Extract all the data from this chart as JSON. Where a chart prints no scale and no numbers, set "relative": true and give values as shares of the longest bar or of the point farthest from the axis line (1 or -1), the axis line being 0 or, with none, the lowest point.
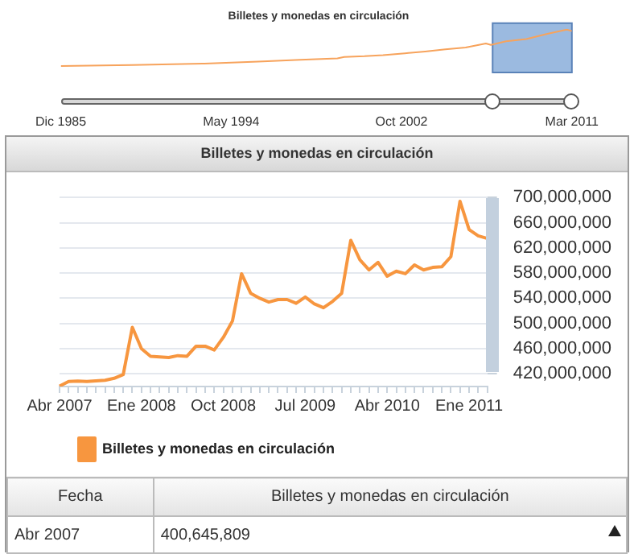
{
  "chart_data": [
    {
      "type": "line",
      "title": "Billetes y monedas en circulación",
      "relative": true,
      "legend": false,
      "grid": false,
      "xlim": [
        "1985-12",
        "2011-03"
      ],
      "xticks": [
        {
          "value": "1985-12",
          "label": "Dic 1985"
        },
        {
          "value": "1994-05",
          "label": "May 1994"
        },
        {
          "value": "2002-10",
          "label": "Oct 2002"
        },
        {
          "value": "2011-03",
          "label": "Mar 2011"
        }
      ],
      "bands": [
        {
          "axis": "x",
          "from": "2007-04",
          "to": "2011-03",
          "color": "#8aaedb"
        }
      ],
      "series": [
        {
          "color": "#f7a35c",
          "x": [
            "1985-12",
            "1989-06",
            "1992-12",
            "1995-09",
            "1997-10",
            "1999-08",
            "1999-12",
            "2000-12",
            "2001-11",
            "2002-12",
            "2003-12",
            "2004-12",
            "2005-12",
            "2006-12",
            "2007-03",
            "2007-12",
            "2008-12",
            "2009-12",
            "2010-12",
            "2011-03"
          ],
          "values": [
            0,
            0.03,
            0.065,
            0.12,
            0.17,
            0.21,
            0.25,
            0.27,
            0.3,
            0.35,
            0.4,
            0.46,
            0.51,
            0.62,
            0.58,
            0.68,
            0.74,
            0.88,
            1,
            0.96
          ]
        }
      ]
    },
    {
      "type": "line",
      "title": "Billetes y monedas en circulación",
      "legend": "bottom left",
      "grid": "y",
      "categories": [
        "Abr 2007",
        null,
        null,
        null,
        null,
        null,
        null,
        null,
        null,
        "Ene 2008",
        null,
        null,
        null,
        null,
        null,
        null,
        null,
        null,
        "Oct 2008",
        null,
        null,
        null,
        null,
        null,
        null,
        null,
        null,
        "Jul 2009",
        null,
        null,
        null,
        null,
        null,
        null,
        null,
        null,
        "Abr 2010",
        null,
        null,
        null,
        null,
        null,
        null,
        null,
        null,
        "Ene 2011",
        null,
        null
      ],
      "ylim": [
        400000000,
        700000000
      ],
      "yticks": [
        {
          "value": 420000000,
          "label": "420,000,000"
        },
        {
          "value": 460000000,
          "label": "460,000,000"
        },
        {
          "value": 500000000,
          "label": "500,000,000"
        },
        {
          "value": 540000000,
          "label": "540,000,000"
        },
        {
          "value": 580000000,
          "label": "580,000,000"
        },
        {
          "value": 620000000,
          "label": "620,000,000"
        },
        {
          "value": 660000000,
          "label": "660,000,000"
        },
        {
          "value": 700000000,
          "label": "700,000,000"
        }
      ],
      "series": [
        {
          "name": "Billetes y monedas en circulación",
          "color": "#f7963f",
          "values": [
            400645809,
            408000000,
            408500000,
            408000000,
            409000000,
            410000000,
            413000000,
            419000000,
            494000000,
            460000000,
            448000000,
            447000000,
            446000000,
            449000000,
            448000000,
            464000000,
            464000000,
            458000000,
            478000000,
            504000000,
            579000000,
            548000000,
            540000000,
            534000000,
            538000000,
            538000000,
            532000000,
            542000000,
            531000000,
            525000000,
            535000000,
            548000000,
            632000000,
            601000000,
            585000000,
            597000000,
            575000000,
            583000000,
            579000000,
            593000000,
            585000000,
            589000000,
            590000000,
            606000000,
            694000000,
            649000000,
            639000000,
            635000000
          ]
        }
      ],
      "annotations": [
        "Fecha",
        "Billetes y monedas en circulación",
        "Abr 2007",
        "400,645,809"
      ]
    }
  ]
}
